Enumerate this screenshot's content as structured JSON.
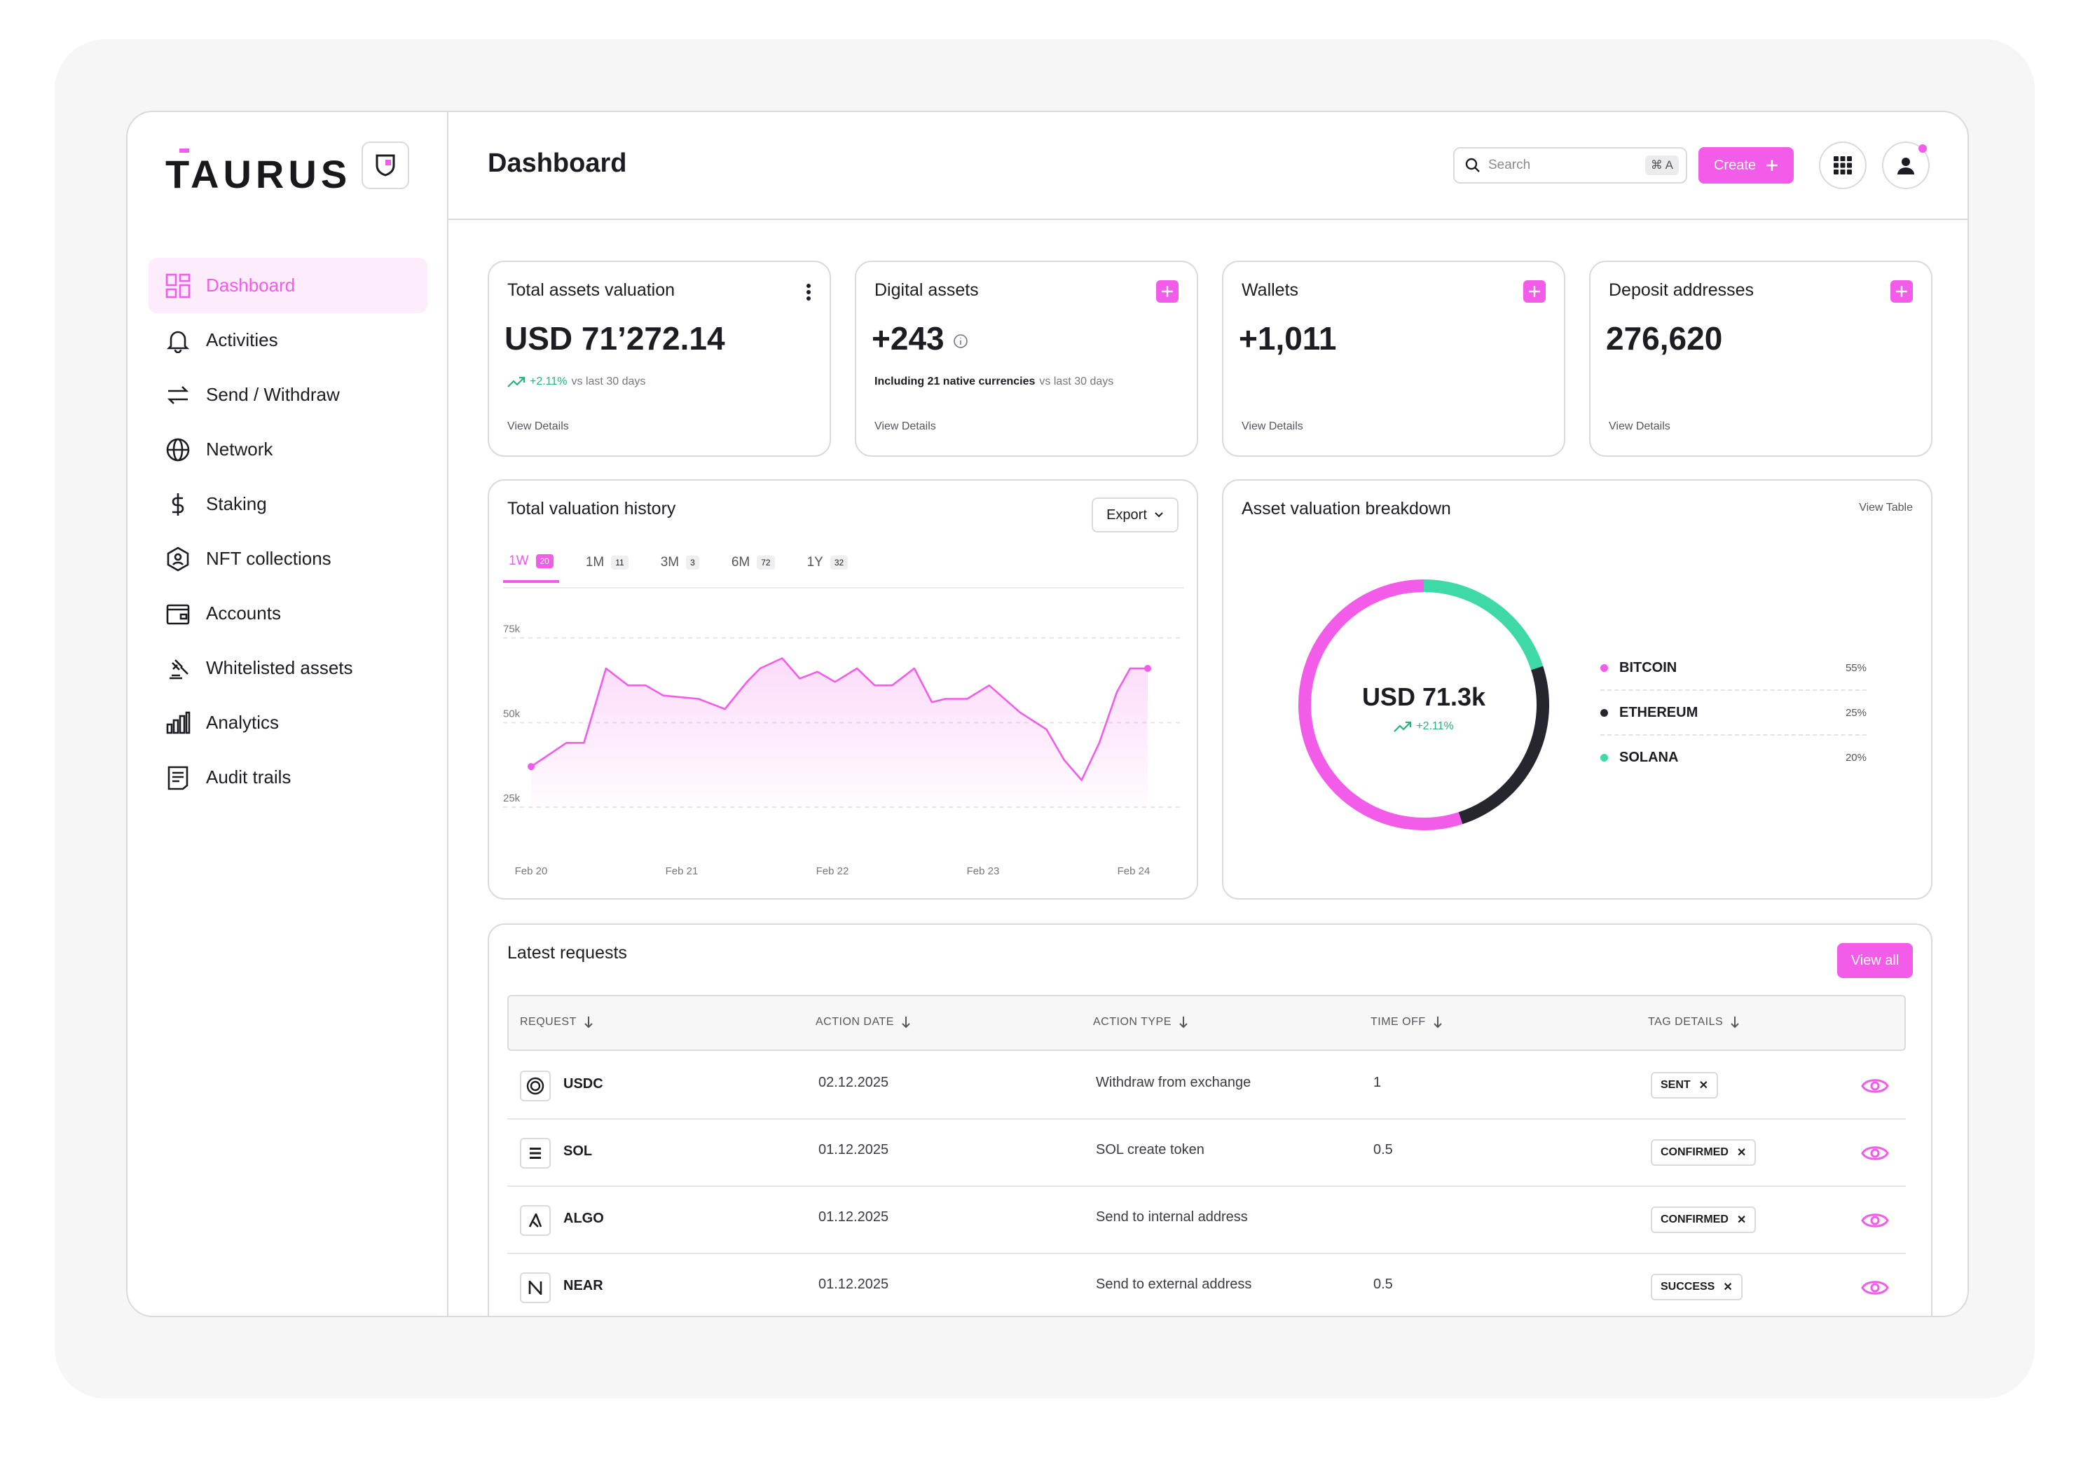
{
  "app": {
    "logo": "TAURUS",
    "page_title": "Dashboard"
  },
  "colors": {
    "accent": "#f35ce8",
    "positive": "#1fb57c",
    "ethereum": "#26262e",
    "solana": "#3ed9a6"
  },
  "header": {
    "search_placeholder": "Search",
    "search_shortcut": "⌘ A",
    "create_label": "Create"
  },
  "sidebar": {
    "items": [
      {
        "label": "Dashboard",
        "icon": "grid-icon"
      },
      {
        "label": "Activities",
        "icon": "bell-icon"
      },
      {
        "label": "Send / Withdraw",
        "icon": "transfer-icon"
      },
      {
        "label": "Network",
        "icon": "globe-icon"
      },
      {
        "label": "Staking",
        "icon": "dollar-icon"
      },
      {
        "label": "NFT collections",
        "icon": "hexagon-icon"
      },
      {
        "label": "Accounts",
        "icon": "wallet-icon"
      },
      {
        "label": "Whitelisted assets",
        "icon": "gavel-icon"
      },
      {
        "label": "Analytics",
        "icon": "bar-chart-icon"
      },
      {
        "label": "Audit trails",
        "icon": "document-icon"
      }
    ]
  },
  "cards": {
    "total": {
      "title": "Total assets valuation",
      "value": "USD 71’272.14",
      "change": "+2.11%",
      "period": "vs last 30 days",
      "link": "View Details"
    },
    "digital": {
      "title": "Digital assets",
      "value": "+243",
      "note": "Including 21 native currencies",
      "period": "vs last 30 days",
      "link": "View Details"
    },
    "wallets": {
      "title": "Wallets",
      "value": "+1,011",
      "link": "View Details"
    },
    "deposit": {
      "title": "Deposit addresses",
      "value": "276,620",
      "link": "View Details"
    }
  },
  "history": {
    "title": "Total valuation history",
    "export_label": "Export",
    "tabs": [
      {
        "label": "1W",
        "count": "20"
      },
      {
        "label": "1M",
        "count": "11"
      },
      {
        "label": "3M",
        "count": "3"
      },
      {
        "label": "6M",
        "count": "72"
      },
      {
        "label": "1Y",
        "count": "32"
      }
    ]
  },
  "chart_data": {
    "type": "area",
    "y_ticks": [
      "75k",
      "50k",
      "25k"
    ],
    "x_ticks": [
      "Feb 20",
      "Feb 21",
      "Feb 22",
      "Feb 23",
      "Feb 24"
    ],
    "ylim": [
      18000,
      78000
    ],
    "x": [
      0,
      0.08,
      0.12,
      0.17,
      0.22,
      0.26,
      0.3,
      0.38,
      0.44,
      0.49,
      0.52,
      0.57,
      0.61,
      0.65,
      0.69,
      0.74,
      0.78,
      0.82,
      0.87,
      0.91,
      0.94,
      0.99,
      1.04,
      1.11,
      1.17,
      1.21,
      1.25,
      1.29,
      1.33,
      1.36,
      1.4
    ],
    "values": [
      37000,
      44000,
      44000,
      66000,
      61000,
      61000,
      58000,
      57000,
      54000,
      62000,
      66000,
      69000,
      63000,
      65000,
      62000,
      66000,
      61000,
      61000,
      66000,
      56000,
      57000,
      57000,
      61000,
      53000,
      48000,
      39000,
      33000,
      44000,
      59000,
      66000,
      66000
    ],
    "grid": true
  },
  "breakdown": {
    "title": "Asset valuation breakdown",
    "link": "View Table",
    "center_value": "USD 71.3k",
    "center_change": "+2.11%",
    "slices": [
      {
        "name": "BITCOIN",
        "pct": "55%",
        "value": 55
      },
      {
        "name": "ETHEREUM",
        "pct": "25%",
        "value": 25
      },
      {
        "name": "SOLANA",
        "pct": "20%",
        "value": 20
      }
    ]
  },
  "requests": {
    "title": "Latest requests",
    "view_all": "View all",
    "columns": [
      "REQUEST",
      "ACTION DATE",
      "ACTION TYPE",
      "TIME OFF",
      "TAG DETAILS"
    ],
    "rows": [
      {
        "asset": "USDC",
        "icon": "usdc-icon",
        "date": "02.12.2025",
        "action": "Withdraw from exchange",
        "time": "1",
        "tag": "SENT"
      },
      {
        "asset": "SOL",
        "icon": "solana-icon",
        "date": "01.12.2025",
        "action": "SOL create token",
        "time": "0.5",
        "tag": "CONFIRMED"
      },
      {
        "asset": "ALGO",
        "icon": "algorand-icon",
        "date": "01.12.2025",
        "action": "Send to internal address",
        "time": "",
        "tag": "CONFIRMED"
      },
      {
        "asset": "NEAR",
        "icon": "near-icon",
        "date": "01.12.2025",
        "action": "Send to external address",
        "time": "0.5",
        "tag": "SUCCESS"
      }
    ]
  }
}
